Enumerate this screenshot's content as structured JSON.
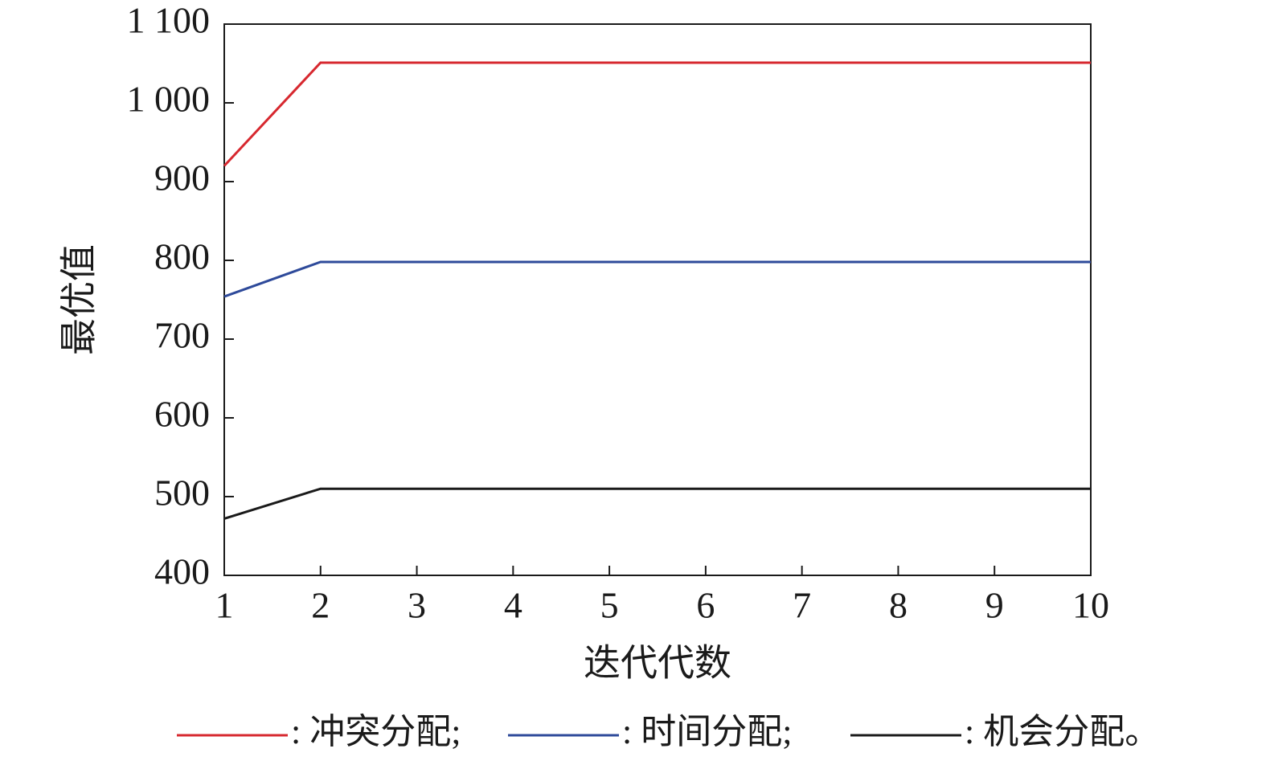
{
  "chart_data": {
    "type": "line",
    "xlabel": "迭代代数",
    "ylabel": "最优值",
    "x": [
      1,
      2,
      3,
      4,
      5,
      6,
      7,
      8,
      9,
      10
    ],
    "series": [
      {
        "name": ": 冲突分配;",
        "color": "#d7282f",
        "values": [
          920,
          1051,
          1051,
          1051,
          1051,
          1051,
          1051,
          1051,
          1051,
          1051
        ]
      },
      {
        "name": ": 时间分配;",
        "color": "#2e4a9a",
        "values": [
          754,
          798,
          798,
          798,
          798,
          798,
          798,
          798,
          798,
          798
        ]
      },
      {
        "name": ": 机会分配。",
        "color": "#1a1a1a",
        "values": [
          472,
          510,
          510,
          510,
          510,
          510,
          510,
          510,
          510,
          510
        ]
      }
    ],
    "xlim": [
      1,
      10
    ],
    "xticks": [
      1,
      2,
      3,
      4,
      5,
      6,
      7,
      8,
      9,
      10
    ],
    "ylim": [
      400,
      1100
    ],
    "yticks": [
      400,
      500,
      600,
      700,
      800,
      900,
      {
        "value": 1000,
        "label": "1 000"
      },
      {
        "value": 1100,
        "label": "1 100"
      }
    ],
    "legend": "bottom"
  }
}
